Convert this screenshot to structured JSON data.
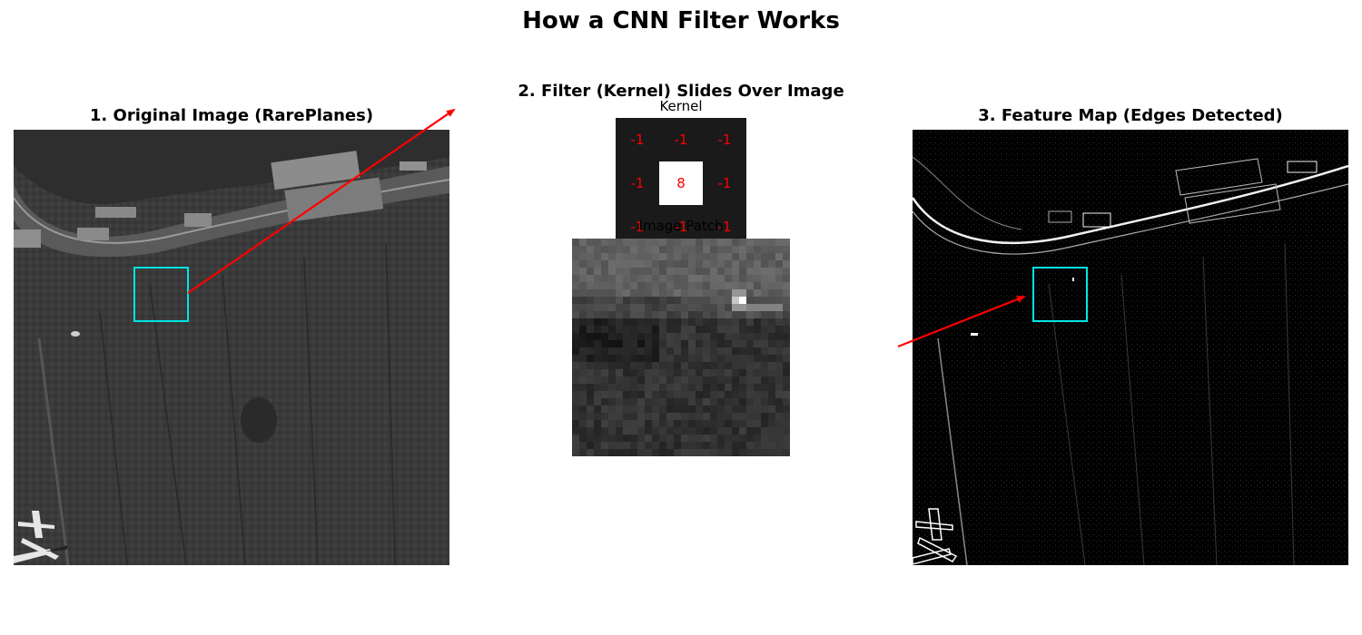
{
  "title": "How a CNN Filter Works",
  "panels": {
    "original": {
      "title": "1. Original Image (RarePlanes)"
    },
    "filter": {
      "title": "2. Filter (Kernel) Slides Over Image",
      "kernel_label": "Kernel",
      "patch_label": "Image Patch"
    },
    "feature": {
      "title": "3. Feature Map (Edges Detected)"
    }
  },
  "kernel": {
    "values": [
      "-1",
      "-1",
      "-1",
      "-1",
      "8",
      "-1",
      "-1",
      "-1",
      "-1"
    ],
    "text_color": "#ff0000"
  },
  "colors": {
    "highlight_box": "#00e5e5",
    "arrow": "#ff0000",
    "kernel_bg": "#1a1a1a"
  }
}
